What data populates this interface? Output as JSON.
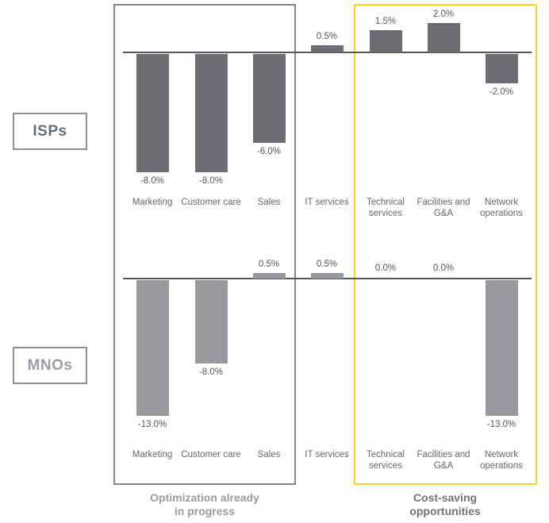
{
  "row_labels": {
    "top": "ISPs",
    "bottom": "MNOs"
  },
  "group_captions": {
    "left": "Optimization already\nin progress",
    "right": "Cost-saving\nopportunities"
  },
  "colors": {
    "isp_bar": "#6c6c72",
    "mno_bar": "#98989d",
    "axis_line": "#55555a",
    "gray_box_border": "#85858a",
    "yellow_box_border": "#ffd41f",
    "value_label_text": "#55555a",
    "category_label_text": "#66666b",
    "left_caption_text": "#9b9b9f",
    "right_caption_text": "#737378"
  },
  "chart_data": [
    {
      "type": "bar",
      "title": "ISPs",
      "categories": [
        "Marketing",
        "Customer care",
        "Sales",
        "IT services",
        "Technical services",
        "Facilities and G&A",
        "Network operations"
      ],
      "values": [
        -8.0,
        -8.0,
        -6.0,
        0.5,
        1.5,
        2.0,
        -2.0
      ],
      "value_labels": [
        "-8.0%",
        "-8.0%",
        "-6.0%",
        "0.5%",
        "1.5%",
        "2.0%",
        "-2.0%"
      ],
      "ylabel": "",
      "xlabel": "",
      "grid": false,
      "legend": false,
      "bar_color_key": "isp_bar"
    },
    {
      "type": "bar",
      "title": "MNOs",
      "categories": [
        "Marketing",
        "Customer care",
        "Sales",
        "IT services",
        "Technical services",
        "Facilities and G&A",
        "Network operations"
      ],
      "values": [
        -13.0,
        -8.0,
        0.5,
        0.5,
        0.0,
        0.0,
        -13.0
      ],
      "value_labels": [
        "-13.0%",
        "-8.0%",
        "0.5%",
        "0.5%",
        "0.0%",
        "0.0%",
        "-13.0%"
      ],
      "ylabel": "",
      "xlabel": "",
      "grid": false,
      "legend": false,
      "bar_color_key": "mno_bar"
    }
  ],
  "annotations": {
    "left_group_categories": [
      "Marketing",
      "Customer care",
      "Sales"
    ],
    "right_group_categories": [
      "Technical services",
      "Facilities and G&A",
      "Network operations"
    ]
  }
}
